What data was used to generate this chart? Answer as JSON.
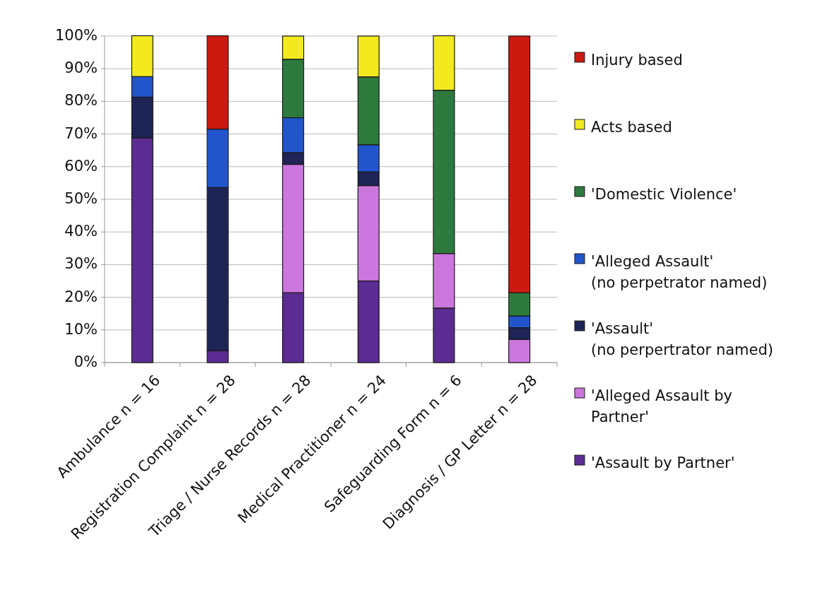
{
  "chart_data": {
    "type": "bar",
    "stacked": true,
    "categories": [
      "Ambulance n = 16",
      "Registration Complaint n = 28",
      "Triage / Nurse Records n = 28",
      "Medical Practitioner n = 24",
      "Safeguarding Form n = 6",
      "Diagnosis / GP Letter n = 28"
    ],
    "series": [
      {
        "name": "'Assault by Partner'",
        "color": "#5b2c92",
        "values": [
          68.8,
          3.6,
          21.4,
          25,
          16.7,
          0
        ]
      },
      {
        "name": "'Alleged Assault by Partner'",
        "color": "#cc77dd",
        "values": [
          0,
          0,
          39.3,
          29.2,
          16.7,
          7.1
        ]
      },
      {
        "name": "'Assault' (no perpertrator named)",
        "color": "#1f2456",
        "values": [
          12.5,
          50,
          3.6,
          4.2,
          0,
          3.6
        ]
      },
      {
        "name": "'Alleged Assault' (no perpetrator named)",
        "color": "#2255cc",
        "values": [
          6.3,
          17.9,
          10.7,
          8.3,
          0,
          3.6
        ]
      },
      {
        "name": "'Domestic Violence'",
        "color": "#2e7a3e",
        "values": [
          0,
          0,
          17.9,
          20.8,
          50,
          7.1
        ]
      },
      {
        "name": "Acts based",
        "color": "#f2ea1e",
        "values": [
          12.5,
          0,
          7.1,
          12.5,
          16.7,
          0
        ]
      },
      {
        "name": "Injury based",
        "color": "#cc1a10",
        "values": [
          0,
          28.6,
          0,
          0,
          0,
          78.6
        ]
      }
    ],
    "ylim": [
      0,
      100
    ],
    "yticks": [
      {
        "value": 0,
        "label": "0%"
      },
      {
        "value": 10,
        "label": "10%"
      },
      {
        "value": 20,
        "label": "20%"
      },
      {
        "value": 30,
        "label": "30%"
      },
      {
        "value": 40,
        "label": "40%"
      },
      {
        "value": 50,
        "label": "50%"
      },
      {
        "value": 60,
        "label": "60%"
      },
      {
        "value": 70,
        "label": "70%"
      },
      {
        "value": 80,
        "label": "80%"
      },
      {
        "value": 90,
        "label": "90%"
      },
      {
        "value": 100,
        "label": "100%"
      }
    ],
    "grid": "y",
    "legend": "right"
  }
}
